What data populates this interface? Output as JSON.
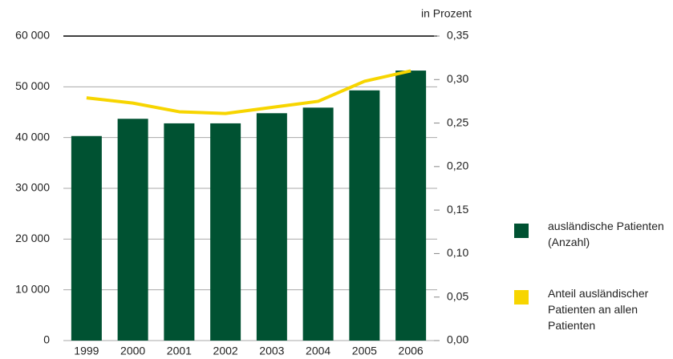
{
  "chart_data": {
    "type": "bar_line",
    "y2_label": "in Prozent",
    "categories": [
      "1999",
      "2000",
      "2001",
      "2002",
      "2003",
      "2004",
      "2005",
      "2006"
    ],
    "series": [
      {
        "name": "ausländische Patienten (Anzahl)",
        "type": "bar",
        "color": "#005232",
        "values": [
          40300,
          43700,
          42800,
          42800,
          44800,
          45900,
          49300,
          53200
        ]
      },
      {
        "name": "Anteil ausländischer Patienten an allen Patienten",
        "type": "line",
        "axis": "y2",
        "color": "#f7d500",
        "values": [
          0.279,
          0.273,
          0.263,
          0.261,
          0.268,
          0.275,
          0.298,
          0.31
        ]
      }
    ],
    "ylim": [
      0,
      60000
    ],
    "yticks": [
      0,
      {
        "value": 10000,
        "label": "10 000"
      },
      {
        "value": 20000,
        "label": "20 000"
      },
      {
        "value": 30000,
        "label": "30 000"
      },
      {
        "value": 40000,
        "label": "40 000"
      },
      {
        "value": 50000,
        "label": "50 000"
      },
      {
        "value": 60000,
        "label": "60 000"
      }
    ],
    "y2lim": [
      0,
      0.35
    ],
    "y2ticks": [
      {
        "value": 0,
        "label": "0,00"
      },
      {
        "value": 0.05,
        "label": "0,05"
      },
      {
        "value": 0.1,
        "label": "0,10"
      },
      {
        "value": 0.15,
        "label": "0,15"
      },
      {
        "value": 0.2,
        "label": "0,20"
      },
      {
        "value": 0.25,
        "label": "0,25"
      },
      {
        "value": 0.3,
        "label": "0,30"
      },
      {
        "value": 0.35,
        "label": "0,35"
      }
    ],
    "grid": true
  }
}
